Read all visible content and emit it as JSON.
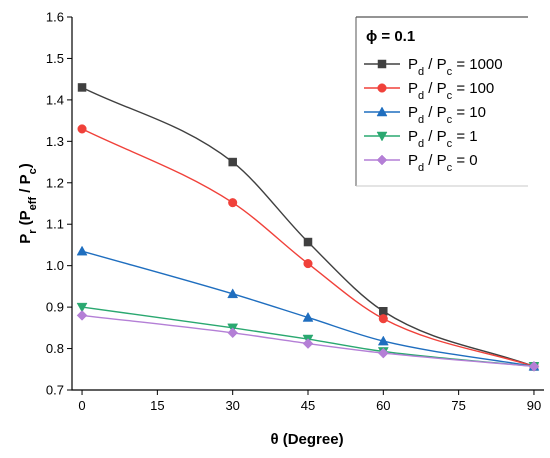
{
  "chart_data": {
    "type": "line",
    "xlabel": "θ (Degree)",
    "ylabel": "P_r (P_eff / P_c)",
    "xlim": [
      -2,
      92
    ],
    "ylim": [
      0.7,
      1.6
    ],
    "xticks": [
      0,
      15,
      30,
      45,
      60,
      75,
      90
    ],
    "yticks": [
      0.7,
      0.8,
      0.9,
      1.0,
      1.1,
      1.2,
      1.3,
      1.4,
      1.5,
      1.6
    ],
    "ytick_labels": [
      "0.7",
      "0.8",
      "0.9",
      "1.0",
      "1.1",
      "1.2",
      "1.3",
      "1.4",
      "1.5",
      "1.6"
    ],
    "grid": false,
    "legend": {
      "position": "top-right",
      "title": "ϕ = 0.1"
    },
    "x": [
      0,
      30,
      45,
      60,
      90
    ],
    "series": [
      {
        "name": "P_d / P_c = 1000",
        "label_parts": [
          "P",
          "d",
          " / P",
          "c",
          " = 1000"
        ],
        "color": "#404040",
        "marker": "square",
        "values": [
          1.43,
          1.25,
          1.057,
          0.89,
          0.757
        ]
      },
      {
        "name": "P_d / P_c = 100",
        "label_parts": [
          "P",
          "d",
          " / P",
          "c",
          " = 100"
        ],
        "color": "#f0413a",
        "marker": "circle",
        "values": [
          1.33,
          1.152,
          1.005,
          0.872,
          0.757
        ]
      },
      {
        "name": "P_d / P_c = 10",
        "label_parts": [
          "P",
          "d",
          " / P",
          "c",
          " = 10"
        ],
        "color": "#1f6ebf",
        "marker": "triangle-up",
        "values": [
          1.035,
          0.932,
          0.875,
          0.818,
          0.757
        ]
      },
      {
        "name": "P_d / P_c = 1",
        "label_parts": [
          "P",
          "d",
          " / P",
          "c",
          " = 1"
        ],
        "color": "#2aa870",
        "marker": "triangle-down",
        "values": [
          0.9,
          0.85,
          0.823,
          0.793,
          0.757
        ]
      },
      {
        "name": "P_d / P_c = 0",
        "label_parts": [
          "P",
          "d",
          " / P",
          "c",
          " = 0"
        ],
        "color": "#b47fd6",
        "marker": "diamond",
        "values": [
          0.88,
          0.838,
          0.812,
          0.789,
          0.757
        ]
      }
    ]
  }
}
